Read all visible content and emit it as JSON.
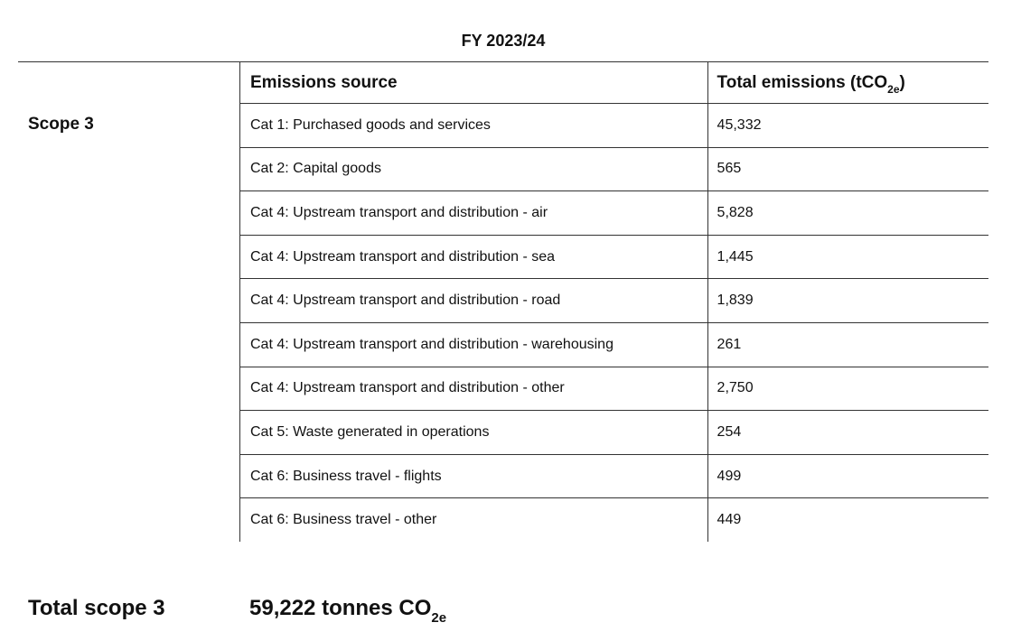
{
  "fiscal_year": "FY 2023/24",
  "scope_label": "Scope 3",
  "table": {
    "headers": {
      "source": "Emissions source",
      "total_prefix": "Total emissions (tCO",
      "total_sub": "2e",
      "total_suffix": ")"
    },
    "rows": [
      {
        "source": "Cat 1: Purchased goods and services",
        "total": "45,332"
      },
      {
        "source": "Cat 2: Capital goods",
        "total": "565"
      },
      {
        "source": "Cat 4: Upstream transport and distribution - air",
        "total": "5,828"
      },
      {
        "source": "Cat 4: Upstream transport and distribution - sea",
        "total": "1,445"
      },
      {
        "source": "Cat 4: Upstream transport and distribution - road",
        "total": "1,839"
      },
      {
        "source": "Cat 4: Upstream transport and distribution - warehousing",
        "total": "261"
      },
      {
        "source": "Cat 4: Upstream transport and distribution - other",
        "total": "2,750"
      },
      {
        "source": "Cat 5: Waste generated in operations",
        "total": "254"
      },
      {
        "source": "Cat 6: Business travel - flights",
        "total": "499"
      },
      {
        "source": "Cat 6: Business travel - other",
        "total": "449"
      }
    ]
  },
  "total": {
    "label": "Total scope 3",
    "value_prefix": "59,222 tonnes CO",
    "value_sub": "2e"
  }
}
